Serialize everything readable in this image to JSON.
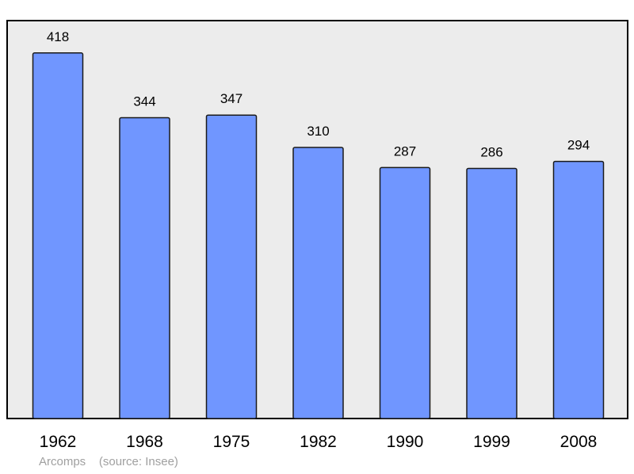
{
  "chart_data": {
    "type": "bar",
    "categories": [
      "1962",
      "1968",
      "1975",
      "1982",
      "1990",
      "1999",
      "2008"
    ],
    "values": [
      418,
      344,
      347,
      310,
      287,
      286,
      294
    ],
    "data_labels": [
      "418",
      "344",
      "347",
      "310",
      "287",
      "286",
      "294"
    ],
    "ylim": [
      0,
      455
    ],
    "grid": false,
    "legend": "none"
  },
  "caption": {
    "place": "Arcomps",
    "source": "(source: Insee)"
  },
  "colors": {
    "bar_fill": "#7096ff",
    "bar_stroke": "#1a1a1a",
    "plot_background": "#ececec",
    "plot_border": "#000000",
    "caption_text": "#a0a0a0"
  }
}
